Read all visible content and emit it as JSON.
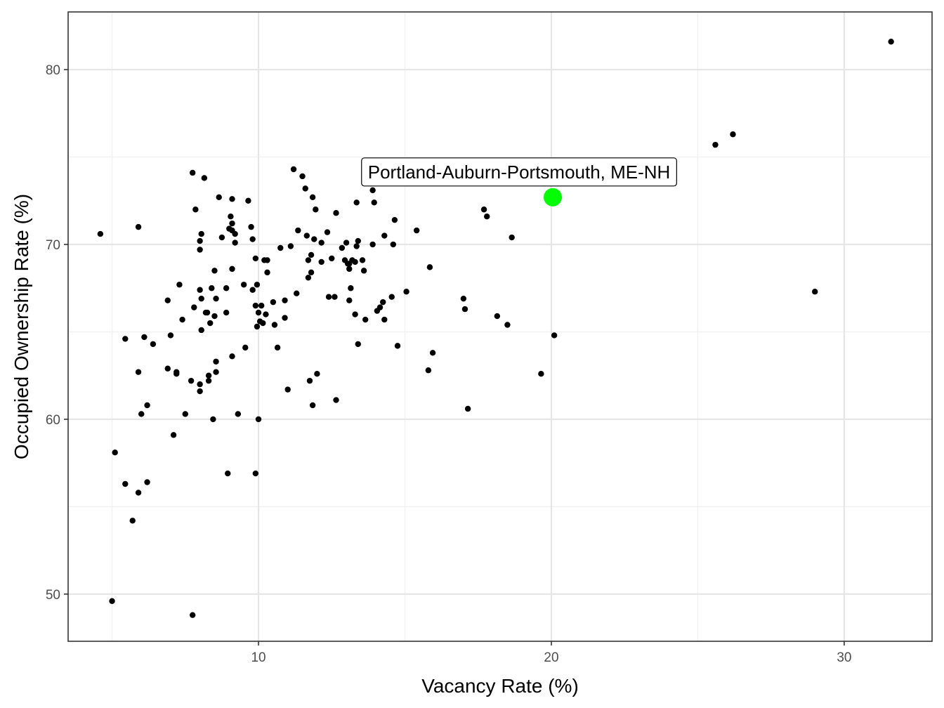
{
  "chart_data": {
    "type": "scatter",
    "title": "",
    "xlabel": "Vacancy Rate (%)",
    "ylabel": "Occupied Ownership Rate (%)",
    "xlim": [
      3.5,
      33.0
    ],
    "ylim": [
      47.3,
      83.3
    ],
    "x_ticks": [
      10,
      20,
      30
    ],
    "y_ticks": [
      50,
      60,
      70,
      80
    ],
    "x_minor": [
      5,
      15,
      25
    ],
    "y_minor": [
      55,
      65,
      75
    ],
    "grid": true,
    "legend": "none",
    "point_color": "#000000",
    "highlight": {
      "label": "Portland-Auburn-Portsmouth, ME-NH",
      "x": 20.05,
      "y": 72.7,
      "color": "#00ff00"
    },
    "points": [
      [
        4.6,
        70.6
      ],
      [
        5.0,
        49.6
      ],
      [
        5.1,
        58.1
      ],
      [
        5.45,
        64.6
      ],
      [
        5.45,
        56.3
      ],
      [
        5.7,
        54.2
      ],
      [
        5.9,
        71.0
      ],
      [
        5.9,
        62.7
      ],
      [
        5.9,
        55.8
      ],
      [
        6.0,
        60.3
      ],
      [
        6.1,
        64.7
      ],
      [
        6.2,
        60.8
      ],
      [
        6.2,
        56.4
      ],
      [
        6.4,
        64.3
      ],
      [
        6.9,
        66.8
      ],
      [
        6.9,
        62.9
      ],
      [
        7.0,
        64.8
      ],
      [
        7.1,
        59.1
      ],
      [
        7.2,
        62.6
      ],
      [
        7.2,
        62.7
      ],
      [
        7.3,
        67.7
      ],
      [
        7.4,
        65.7
      ],
      [
        7.5,
        60.3
      ],
      [
        7.7,
        62.2
      ],
      [
        7.75,
        74.1
      ],
      [
        7.8,
        66.4
      ],
      [
        7.75,
        48.8
      ],
      [
        7.85,
        72.0
      ],
      [
        8.0,
        70.2
      ],
      [
        8.0,
        69.7
      ],
      [
        8.0,
        67.4
      ],
      [
        8.05,
        70.6
      ],
      [
        8.05,
        66.9
      ],
      [
        8.05,
        65.1
      ],
      [
        8.0,
        61.6
      ],
      [
        8.0,
        62.0
      ],
      [
        8.15,
        73.8
      ],
      [
        8.2,
        66.1
      ],
      [
        8.25,
        66.1
      ],
      [
        8.3,
        62.5
      ],
      [
        8.3,
        62.2
      ],
      [
        8.35,
        65.5
      ],
      [
        8.4,
        67.5
      ],
      [
        8.45,
        60.0
      ],
      [
        8.5,
        68.5
      ],
      [
        8.5,
        65.9
      ],
      [
        8.55,
        66.9
      ],
      [
        8.55,
        62.7
      ],
      [
        8.55,
        63.3
      ],
      [
        8.65,
        72.7
      ],
      [
        8.75,
        70.4
      ],
      [
        8.9,
        67.5
      ],
      [
        8.9,
        66.1
      ],
      [
        8.95,
        56.9
      ],
      [
        9.0,
        70.9
      ],
      [
        9.05,
        71.6
      ],
      [
        9.1,
        72.6
      ],
      [
        9.1,
        71.2
      ],
      [
        9.1,
        70.8
      ],
      [
        9.2,
        70.1
      ],
      [
        9.2,
        70.6
      ],
      [
        9.1,
        68.6
      ],
      [
        9.1,
        63.6
      ],
      [
        9.3,
        60.3
      ],
      [
        9.5,
        67.7
      ],
      [
        9.55,
        64.1
      ],
      [
        9.65,
        72.5
      ],
      [
        9.75,
        71.0
      ],
      [
        9.8,
        67.4
      ],
      [
        9.8,
        70.3
      ],
      [
        9.9,
        69.2
      ],
      [
        9.9,
        66.5
      ],
      [
        9.95,
        65.3
      ],
      [
        9.95,
        67.7
      ],
      [
        9.9,
        56.9
      ],
      [
        10.0,
        60.0
      ],
      [
        10.0,
        66.1
      ],
      [
        10.1,
        66.5
      ],
      [
        10.05,
        65.6
      ],
      [
        10.15,
        65.5
      ],
      [
        10.25,
        66.0
      ],
      [
        10.2,
        69.1
      ],
      [
        10.3,
        68.4
      ],
      [
        10.3,
        69.1
      ],
      [
        10.5,
        66.7
      ],
      [
        10.55,
        65.4
      ],
      [
        10.65,
        64.1
      ],
      [
        10.75,
        69.8
      ],
      [
        10.9,
        65.8
      ],
      [
        10.9,
        66.8
      ],
      [
        11.0,
        61.7
      ],
      [
        11.1,
        69.9
      ],
      [
        11.2,
        74.3
      ],
      [
        11.3,
        67.2
      ],
      [
        11.35,
        70.8
      ],
      [
        11.5,
        73.9
      ],
      [
        11.6,
        73.2
      ],
      [
        11.65,
        70.5
      ],
      [
        11.7,
        69.1
      ],
      [
        11.7,
        68.1
      ],
      [
        11.75,
        62.2
      ],
      [
        11.8,
        69.4
      ],
      [
        11.8,
        68.4
      ],
      [
        11.85,
        72.7
      ],
      [
        11.85,
        60.8
      ],
      [
        11.9,
        70.3
      ],
      [
        11.95,
        72.0
      ],
      [
        12.0,
        62.6
      ],
      [
        12.15,
        70.1
      ],
      [
        12.15,
        69.0
      ],
      [
        12.35,
        70.7
      ],
      [
        12.4,
        67.0
      ],
      [
        12.5,
        69.2
      ],
      [
        12.6,
        67.0
      ],
      [
        12.65,
        61.1
      ],
      [
        12.65,
        71.8
      ],
      [
        12.85,
        69.8
      ],
      [
        12.95,
        69.1
      ],
      [
        13.0,
        70.1
      ],
      [
        13.05,
        68.9
      ],
      [
        13.1,
        68.6
      ],
      [
        13.1,
        68.9
      ],
      [
        13.15,
        67.5
      ],
      [
        13.1,
        66.8
      ],
      [
        13.2,
        69.1
      ],
      [
        13.3,
        69.0
      ],
      [
        13.3,
        66.0
      ],
      [
        13.35,
        72.4
      ],
      [
        13.35,
        69.9
      ],
      [
        13.4,
        70.2
      ],
      [
        13.4,
        64.3
      ],
      [
        13.55,
        69.1
      ],
      [
        13.6,
        68.5
      ],
      [
        13.65,
        65.7
      ],
      [
        13.9,
        73.1
      ],
      [
        13.9,
        70.0
      ],
      [
        13.95,
        72.4
      ],
      [
        14.05,
        66.2
      ],
      [
        14.15,
        66.4
      ],
      [
        14.25,
        66.7
      ],
      [
        14.3,
        70.5
      ],
      [
        14.3,
        65.7
      ],
      [
        14.55,
        67.0
      ],
      [
        14.6,
        70.0
      ],
      [
        14.65,
        71.4
      ],
      [
        14.75,
        64.2
      ],
      [
        15.05,
        67.3
      ],
      [
        15.4,
        70.8
      ],
      [
        15.85,
        68.7
      ],
      [
        15.8,
        62.8
      ],
      [
        15.95,
        63.8
      ],
      [
        17.0,
        66.9
      ],
      [
        17.05,
        66.3
      ],
      [
        17.15,
        60.6
      ],
      [
        17.7,
        72.0
      ],
      [
        17.8,
        71.6
      ],
      [
        18.15,
        65.9
      ],
      [
        18.5,
        65.4
      ],
      [
        18.65,
        70.4
      ],
      [
        19.65,
        62.6
      ],
      [
        20.1,
        64.8
      ],
      [
        25.6,
        75.7
      ],
      [
        26.2,
        76.3
      ],
      [
        29.0,
        67.3
      ],
      [
        31.6,
        81.6
      ]
    ]
  }
}
